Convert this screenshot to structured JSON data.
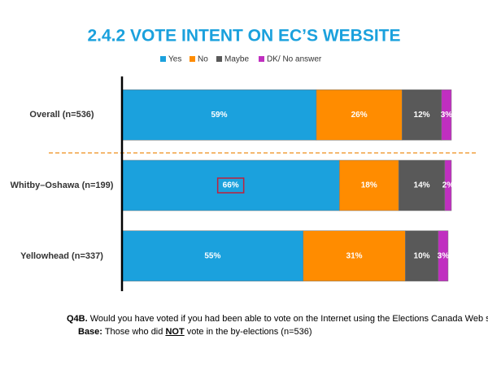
{
  "chart_data": {
    "type": "stacked-bar",
    "orientation": "horizontal",
    "title": "2.4.2 VOTE INTENT ON EC’S WEBSITE",
    "categories": [
      "Overall (n=536)",
      "Whitby–Oshawa (n=199)",
      "Yellowhead (n=337)"
    ],
    "series": [
      {
        "name": "Yes",
        "color": "#1ba1dd",
        "values": [
          59,
          66,
          55
        ],
        "value_labels": [
          "59%",
          "66%",
          "55%"
        ]
      },
      {
        "name": "No",
        "color": "#ff8c00",
        "values": [
          26,
          18,
          31
        ],
        "value_labels": [
          "26%",
          "18%",
          "31%"
        ]
      },
      {
        "name": "Maybe",
        "color": "#595959",
        "values": [
          12,
          14,
          10
        ],
        "value_labels": [
          "12%",
          "14%",
          "10%"
        ]
      },
      {
        "name": "DK/ No answer",
        "color": "#c02fc0",
        "values": [
          3,
          2,
          3
        ],
        "value_labels": [
          "3%",
          "2%",
          "3%"
        ]
      }
    ],
    "xlim": [
      0,
      100
    ],
    "legend": "top"
  },
  "notes": {
    "question_id": "Q4B.",
    "question": "Would you have voted if you had been able to vote on the Internet using the Elections Canada Web site?",
    "base_label": "Base:",
    "base_text_1": "Those who did",
    "base_emphasis": "NOT",
    "base_text_2": "vote in the by-elections (n=536)"
  }
}
